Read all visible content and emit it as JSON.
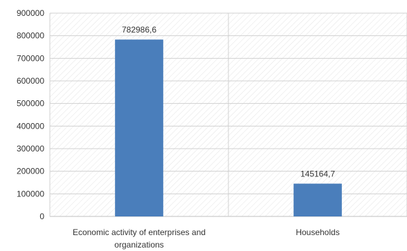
{
  "chart_data": {
    "type": "bar",
    "title": "",
    "xlabel": "",
    "ylabel": "",
    "categories": [
      "Economic activity of enterprises and organizations",
      "Households"
    ],
    "category_lines": [
      [
        "Economic activity of enterprises and",
        "organizations"
      ],
      [
        "Households"
      ]
    ],
    "values": [
      782986.6,
      145164.7
    ],
    "value_labels": [
      "782986,6",
      "145164,7"
    ],
    "ylim": [
      0,
      900000
    ],
    "yticks": [
      0,
      100000,
      200000,
      300000,
      400000,
      500000,
      600000,
      700000,
      800000,
      900000
    ],
    "ytick_labels": [
      "0",
      "100000",
      "200000",
      "300000",
      "400000",
      "500000",
      "600000",
      "700000",
      "800000",
      "900000"
    ],
    "grid": true,
    "legend": "none",
    "colors": {
      "bar": "#4a7ebb",
      "background": "#ffffff",
      "hatch": "#e4e4e4",
      "grid": "#d0d0d0",
      "axis": "#bfbfbf",
      "text": "#333333"
    }
  }
}
